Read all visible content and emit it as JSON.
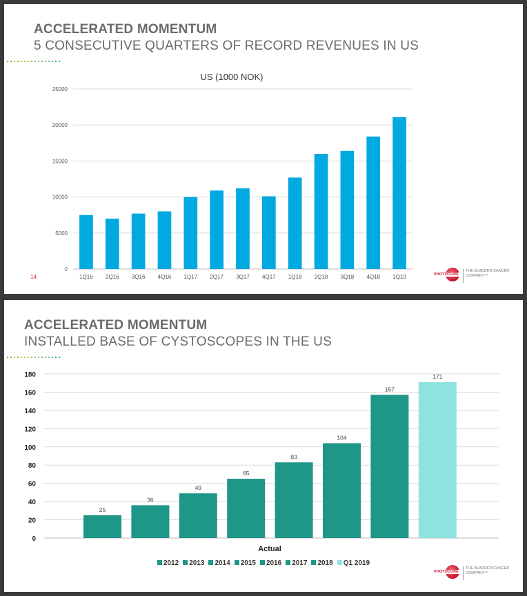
{
  "slide1": {
    "title": "ACCELERATED MOMENTUM",
    "subtitle": "5 CONSECUTIVE QUARTERS OF RECORD REVENUES IN US",
    "page_number": "14",
    "logo": {
      "word": "PHOTOCURE",
      "tagline": "THE BLADDER CANCER COMPANY™"
    }
  },
  "slide2": {
    "title": "ACCELERATED MOMENTUM",
    "subtitle": "INSTALLED BASE OF CYSTOSCOPES IN THE US",
    "logo": {
      "word": "PHOTOCURE",
      "tagline": "THE BLADDER CANCER COMPANY™"
    }
  },
  "chart_data": [
    {
      "type": "bar",
      "title": "US (1000 NOK)",
      "xlabel": "",
      "ylabel": "",
      "categories": [
        "1Q16",
        "2Q16",
        "3Q16",
        "4Q16",
        "1Q17",
        "2Q17",
        "3Q17",
        "4Q17",
        "1Q18",
        "2Q18",
        "3Q18",
        "4Q18",
        "1Q19"
      ],
      "values": [
        7500,
        7000,
        7700,
        8000,
        10000,
        10900,
        11200,
        10100,
        12700,
        16000,
        16400,
        18400,
        21100
      ],
      "ylim": [
        0,
        25000
      ],
      "yticks": [
        0,
        5000,
        10000,
        15000,
        20000,
        25000
      ],
      "grid": true,
      "bar_color": "#00a9e0"
    },
    {
      "type": "bar",
      "title": "",
      "xlabel": "Actual",
      "ylabel": "",
      "categories": [
        "2012",
        "2013",
        "2014",
        "2015",
        "2016",
        "2017",
        "2018",
        "Q1 2019"
      ],
      "values": [
        25,
        36,
        49,
        65,
        83,
        104,
        157,
        171
      ],
      "data_labels": [
        "25",
        "36",
        "49",
        "65",
        "83",
        "104",
        "157",
        "171"
      ],
      "ylim": [
        0,
        180
      ],
      "yticks": [
        0,
        20,
        40,
        60,
        80,
        100,
        120,
        140,
        160,
        180
      ],
      "grid": true,
      "legend": [
        "2012",
        "2013",
        "2014",
        "2015",
        "2016",
        "2017",
        "2018",
        "Q1 2019"
      ],
      "legend_position": "bottom",
      "colors": [
        "#1e9688",
        "#1e9688",
        "#1e9688",
        "#1e9688",
        "#1e9688",
        "#1e9688",
        "#1e9688",
        "#8fe3de"
      ]
    }
  ]
}
